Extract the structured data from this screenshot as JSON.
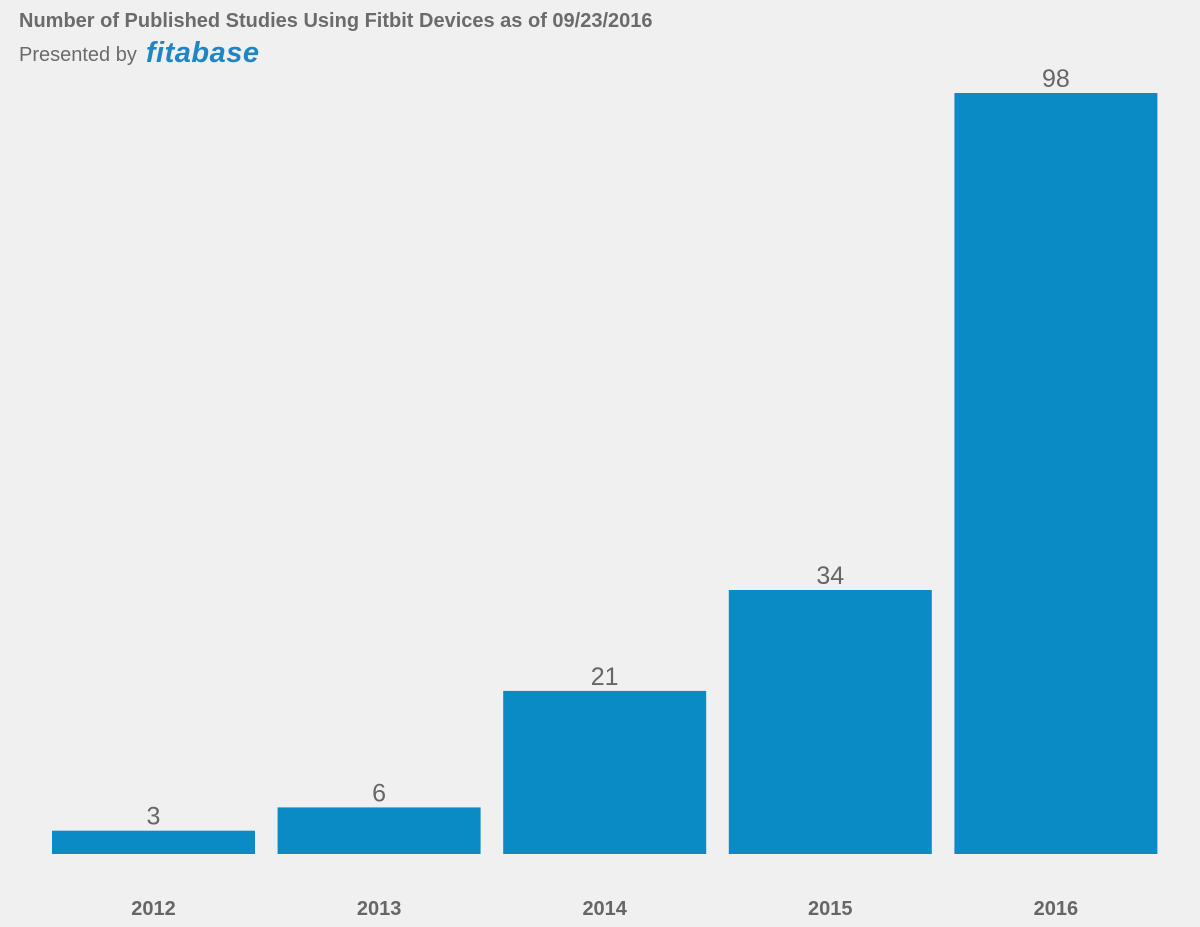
{
  "header": {
    "title": "Number of Published Studies Using Fitbit Devices as of 09/23/2016",
    "presented_by": "Presented by",
    "logo_text": "fitabase"
  },
  "colors": {
    "bar": "#0a8bc5",
    "logo": "#1e86c4",
    "text": "#6b6b6b",
    "background": "#f0f0f0"
  },
  "chart_data": {
    "type": "bar",
    "title": "Number of Published Studies Using Fitbit Devices as of 09/23/2016",
    "categories": [
      "2012",
      "2013",
      "2014",
      "2015",
      "2016"
    ],
    "values": [
      3,
      6,
      21,
      34,
      98
    ],
    "data_labels": [
      "3",
      "6",
      "21",
      "34",
      "98"
    ],
    "xlabel": "",
    "ylabel": "",
    "ylim": [
      0,
      98
    ],
    "grid": false,
    "legend": "none"
  }
}
